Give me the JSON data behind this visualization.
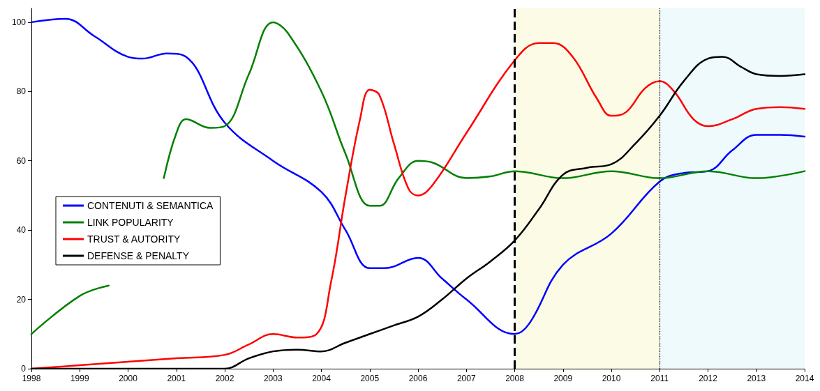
{
  "chart_data": {
    "type": "line",
    "xlim": [
      1998,
      2014
    ],
    "xticks": [
      1998,
      1999,
      2000,
      2001,
      2002,
      2003,
      2004,
      2005,
      2006,
      2007,
      2008,
      2009,
      2010,
      2011,
      2012,
      2013,
      2014
    ],
    "ylim": [
      0,
      104
    ],
    "yticks": [
      0,
      20,
      40,
      60,
      80,
      100
    ],
    "grid": false,
    "legend": "left",
    "marker": "none",
    "line_style": "solid",
    "series": [
      {
        "name": "CONTENUTI & SEMANTICA",
        "color": "#0000ff",
        "x": [
          1998,
          1998.7,
          1999.3,
          2000,
          2000.3,
          2000.8,
          2001.2,
          2002,
          2003,
          2004,
          2004.5,
          2005,
          2005.3,
          2006,
          2006.5,
          2007,
          2008,
          2008.3,
          2009,
          2010,
          2011,
          2011.5,
          2012,
          2012.5,
          2013,
          2013.5,
          2014
        ],
        "values": [
          100,
          101,
          96,
          90,
          89.5,
          91,
          90,
          71,
          60,
          51,
          40,
          29,
          29,
          32,
          26,
          20,
          10,
          13,
          30,
          39,
          54,
          56.5,
          57,
          63,
          67.5,
          67.5,
          67
        ]
      },
      {
        "name": "LINK POPULARITY",
        "color": "#008000",
        "x": [
          1998,
          1999,
          1999.6,
          2000.2,
          2000.74,
          2001,
          2001.2,
          2001.7,
          2002,
          2002.5,
          2003,
          2003.3,
          2004,
          2004.5,
          2005,
          2005.2,
          2005.6,
          2006,
          2006.3,
          2007,
          2007.5,
          2008,
          2009,
          2010,
          2011,
          2012,
          2013,
          2014
        ],
        "values": [
          10,
          21,
          24,
          null,
          55,
          68,
          72,
          69.5,
          70,
          85,
          100,
          97,
          80,
          62,
          47,
          47,
          55,
          60,
          59.5,
          55,
          55.5,
          57,
          55,
          57,
          55,
          57,
          55,
          57
        ]
      },
      {
        "name": "TRUST & AUTORITY",
        "color": "#ff0000",
        "x": [
          1998,
          1999,
          2000,
          2001,
          2002,
          2002.5,
          2003,
          2003.5,
          2003.9,
          2004.2,
          2004.5,
          2004.8,
          2005,
          2005.2,
          2005.5,
          2005.8,
          2006,
          2006.3,
          2007,
          2008,
          2008.5,
          2008.8,
          2009.2,
          2009.7,
          2010,
          2010.3,
          2010.7,
          2011,
          2011.3,
          2011.7,
          2012,
          2012.5,
          2013,
          2013.5,
          2014
        ],
        "values": [
          0,
          1,
          2,
          3,
          4,
          7,
          10,
          9,
          10,
          25,
          50,
          72,
          80.5,
          79,
          65,
          52,
          50,
          53,
          68,
          89,
          94,
          94,
          90,
          78,
          73,
          74,
          81,
          83,
          80,
          72,
          70,
          72,
          75,
          75.5,
          75
        ]
      },
      {
        "name": "DEFENSE & PENALTY",
        "color": "#000000",
        "x": [
          1998,
          1999,
          2000,
          2001,
          2002,
          2002.5,
          2003,
          2003.5,
          2004,
          2004.5,
          2005,
          2005.5,
          2006,
          2006.5,
          2007,
          2007.5,
          2008,
          2008.5,
          2009,
          2009.5,
          2010,
          2010.5,
          2011,
          2011.5,
          2012,
          2012.3,
          2012.7,
          2013,
          2013.5,
          2014
        ],
        "values": [
          0,
          0,
          0,
          0,
          0,
          3,
          5,
          5.5,
          5,
          7.5,
          10,
          12.5,
          15,
          20,
          26,
          31,
          37,
          46,
          56,
          58,
          59,
          65,
          73,
          83,
          89.5,
          90,
          87,
          85,
          84.5,
          85
        ]
      }
    ],
    "ref_lines": [
      {
        "axis": "x",
        "value": 2008,
        "color": "#000000",
        "line_style": "dashed"
      },
      {
        "axis": "x",
        "value": 2011,
        "color": "#000000",
        "line_style": "dotted"
      }
    ],
    "bands": [
      {
        "axis": "x",
        "from": 2008,
        "to": 2011,
        "color": "#fbfbe6"
      },
      {
        "axis": "x",
        "from": 2011,
        "to": 2014,
        "color": "#eefafc"
      }
    ]
  }
}
